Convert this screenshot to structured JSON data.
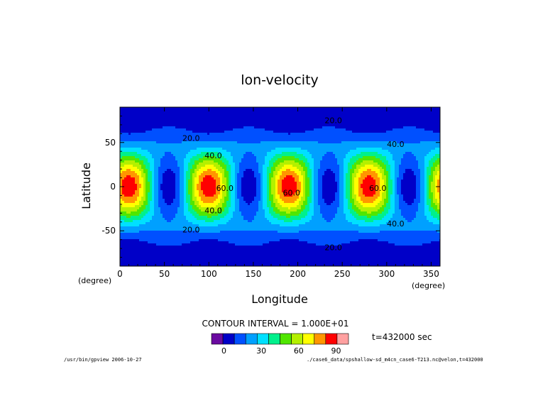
{
  "chart_data": {
    "type": "heatmap",
    "title": "lon-velocity",
    "xlabel": "Longitude",
    "ylabel": "Latitude",
    "x_unit": "(degree)",
    "y_unit": "(degree)",
    "xlim": [
      0,
      360
    ],
    "ylim": [
      -90,
      90
    ],
    "x_ticks": [
      0,
      50,
      100,
      150,
      200,
      250,
      300,
      350
    ],
    "y_ticks": [
      -50,
      0,
      50
    ],
    "contour_interval_text": "CONTOUR INTERVAL = 1.000E+01",
    "time_text": "t=432000 sec",
    "colorbar": {
      "levels": [
        -10,
        0,
        10,
        20,
        30,
        40,
        50,
        60,
        70,
        80,
        90,
        100
      ],
      "tick_labels": [
        "0",
        "30",
        "60",
        "90"
      ],
      "tick_values": [
        0,
        30,
        60,
        90
      ],
      "colors": [
        "#6a0aa0",
        "#0000c8",
        "#0050ff",
        "#00a0ff",
        "#00e0ff",
        "#00f08c",
        "#50e600",
        "#b4f000",
        "#ffff00",
        "#ff9600",
        "#ff0000",
        "#ffa0a0"
      ]
    },
    "field_description": "Periodic pattern with 4 waves in longitude; maxima ~90+ on the equator at lon ~10, 100, 190, 280; minima near 0 at lon ~55, 145, 235, 325 on equator and at lat ~+/-55 near lon 10, 100, 190, 280",
    "contour_labels": [
      {
        "text": "20.0",
        "lon": 240,
        "lat": 72
      },
      {
        "text": "20.0",
        "lon": 80,
        "lat": 52
      },
      {
        "text": "40.0",
        "lon": 105,
        "lat": 32
      },
      {
        "text": "40.0",
        "lon": 310,
        "lat": 45
      },
      {
        "text": "60.0",
        "lon": 118,
        "lat": -5
      },
      {
        "text": "60.0",
        "lon": 193,
        "lat": -10
      },
      {
        "text": "60.0",
        "lon": 290,
        "lat": -5
      },
      {
        "text": "40.0",
        "lon": 105,
        "lat": -30
      },
      {
        "text": "40.0",
        "lon": 310,
        "lat": -45
      },
      {
        "text": "20.0",
        "lon": 80,
        "lat": -52
      },
      {
        "text": "20.0",
        "lon": 240,
        "lat": -72
      }
    ]
  },
  "footer": {
    "left": "/usr/bin/gpview  2006-10-27",
    "right": "./case6_data/spshallow-sd_m4cn_case6-T213.nc@velon,t=432000"
  }
}
